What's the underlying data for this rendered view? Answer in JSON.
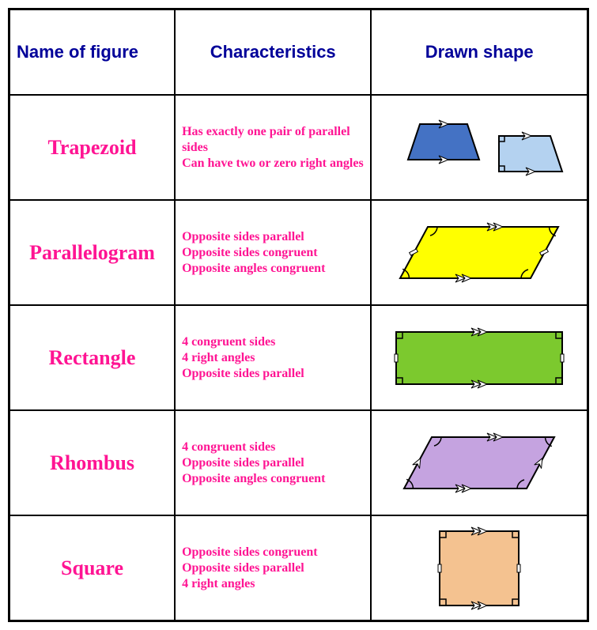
{
  "table": {
    "border_color": "#000000",
    "background": "#ffffff",
    "header": {
      "color": "#000099",
      "fontsize": 22,
      "cols": [
        "Name of figure",
        "Characteristics",
        "Drawn shape"
      ]
    },
    "name_color": "#ff1493",
    "char_color": "#ff1493",
    "rows": [
      {
        "name": "Trapezoid",
        "chars": "Has exactly one pair of parallel sides\nCan have two or zero right angles",
        "shape": {
          "type": "trapezoid-pair",
          "fill1": "#4472c4",
          "fill2": "#b4d2f0",
          "stroke": "#000000"
        }
      },
      {
        "name": "Parallelogram",
        "chars": "Opposite sides parallel\nOpposite sides congruent\nOpposite angles congruent",
        "shape": {
          "type": "parallelogram",
          "fill": "#ffff00",
          "stroke": "#000000"
        }
      },
      {
        "name": "Rectangle",
        "chars": "4 congruent sides\n4 right angles\nOpposite sides parallel",
        "shape": {
          "type": "rectangle",
          "fill": "#7cc92e",
          "stroke": "#000000"
        }
      },
      {
        "name": "Rhombus",
        "chars": "4 congruent sides\nOpposite sides parallel\nOpposite angles congruent",
        "shape": {
          "type": "rhombus",
          "fill": "#c5a3e0",
          "stroke": "#000000"
        }
      },
      {
        "name": "Square",
        "chars": "Opposite sides congruent\nOpposite sides parallel\n4 right angles",
        "shape": {
          "type": "square",
          "fill": "#f4c290",
          "stroke": "#000000"
        }
      }
    ]
  }
}
